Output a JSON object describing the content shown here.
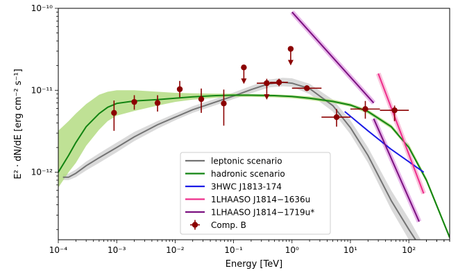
{
  "chart_data": {
    "type": "scatter",
    "title": "",
    "xlabel": "Energy [TeV]",
    "ylabel": "E² · dN/dE [erg cm⁻² s⁻¹]",
    "xscale": "log",
    "yscale": "log",
    "xlim": [
      0.0001,
      500
    ],
    "ylim": [
      1.5e-13,
      1e-10
    ],
    "grid": false,
    "legend_position": "lower-center",
    "x_ticks": [
      {
        "value": 0.0001,
        "label": "10⁻⁴"
      },
      {
        "value": 0.001,
        "label": "10⁻³"
      },
      {
        "value": 0.01,
        "label": "10⁻²"
      },
      {
        "value": 0.1,
        "label": "10⁻¹"
      },
      {
        "value": 1,
        "label": "10⁰"
      },
      {
        "value": 10,
        "label": "10¹"
      },
      {
        "value": 100,
        "label": "10²"
      }
    ],
    "y_ticks": [
      {
        "value": 1e-12,
        "label": "10⁻¹²"
      },
      {
        "value": 1e-11,
        "label": "10⁻¹¹"
      },
      {
        "value": 1e-10,
        "label": "10⁻¹⁰"
      }
    ],
    "series": [
      {
        "name": "leptonic scenario",
        "type": "line",
        "color": "#737373",
        "band_color": "#d3d3d3",
        "x": [
          0.00012,
          0.00015,
          0.0002,
          0.0003,
          0.0005,
          0.001,
          0.002,
          0.005,
          0.01,
          0.02,
          0.05,
          0.1,
          0.2,
          0.4,
          0.7,
          1.0,
          2,
          5,
          10,
          20,
          50,
          100,
          160
        ],
        "y": [
          8.7e-13,
          8.7e-13,
          9.7e-13,
          1.2e-12,
          1.5e-12,
          2e-12,
          2.7e-12,
          3.8e-12,
          4.7e-12,
          5.8e-12,
          7.2e-12,
          8.5e-12,
          1.02e-11,
          1.2e-11,
          1.25e-11,
          1.22e-11,
          1.05e-11,
          6.5e-12,
          3.5e-12,
          1.6e-12,
          4.5e-13,
          2e-13,
          1.2e-13
        ],
        "y_low": [
          8e-13,
          8e-13,
          8.7e-13,
          1.05e-12,
          1.3e-12,
          1.75e-12,
          2.4e-12,
          3.4e-12,
          4.3e-12,
          5.3e-12,
          6.6e-12,
          7.8e-12,
          9.2e-12,
          1.08e-11,
          1.12e-11,
          1.1e-11,
          9e-12,
          5.5e-12,
          2.9e-12,
          1.3e-12,
          3.5e-13,
          1.5e-13,
          1e-13
        ],
        "y_high": [
          9.5e-13,
          9.6e-13,
          1.08e-12,
          1.35e-12,
          1.7e-12,
          2.3e-12,
          3.1e-12,
          4.2e-12,
          5.2e-12,
          6.4e-12,
          7.9e-12,
          9.4e-12,
          1.13e-11,
          1.35e-11,
          1.42e-11,
          1.4e-11,
          1.2e-11,
          7.7e-12,
          4.3e-12,
          2e-12,
          6e-13,
          2.7e-13,
          1.5e-13
        ]
      },
      {
        "name": "hadronic scenario",
        "type": "line",
        "color": "#128412",
        "band_color": "#b4dc82",
        "x": [
          0.0001,
          0.00015,
          0.0002,
          0.0003,
          0.0005,
          0.0007,
          0.001,
          0.002,
          0.005,
          0.01,
          0.02,
          0.05,
          0.1,
          0.2,
          0.5,
          1,
          2,
          5,
          10,
          20,
          50,
          100,
          200,
          500
        ],
        "y": [
          1e-12,
          1.6e-12,
          2.3e-12,
          3.6e-12,
          5.2e-12,
          6.2e-12,
          6.9e-12,
          7.4e-12,
          7.7e-12,
          8e-12,
          8.3e-12,
          8.6e-12,
          8.7e-12,
          8.7e-12,
          8.6e-12,
          8.4e-12,
          8e-12,
          7.3e-12,
          6.6e-12,
          5.5e-12,
          3.6e-12,
          2e-12,
          8e-13,
          1.6e-13
        ],
        "y_low": [
          6.5e-13,
          1e-12,
          1.3e-12,
          2.1e-12,
          3.3e-12,
          4.2e-12,
          4.9e-12,
          5.6e-12,
          6.5e-12,
          7.2e-12,
          7.7e-12,
          8.1e-12,
          8.3e-12,
          8.3e-12,
          8.2e-12,
          8e-12,
          7.6e-12,
          7e-12,
          6.3e-12,
          5.2e-12,
          3.4e-12,
          1.9e-12,
          7.5e-13,
          1.5e-13
        ],
        "y_high": [
          3.2e-12,
          4.2e-12,
          5.2e-12,
          6.8e-12,
          8.8e-12,
          9.6e-12,
          1e-11,
          1e-11,
          9.6e-12,
          9.3e-12,
          9.2e-12,
          9.1e-12,
          9.1e-12,
          9e-12,
          8.9e-12,
          8.7e-12,
          8.4e-12,
          7.7e-12,
          6.9e-12,
          5.8e-12,
          3.8e-12,
          2.2e-12,
          8.6e-13,
          1.7e-13
        ]
      },
      {
        "name": "3HWC J1813-174",
        "type": "line",
        "color": "#1a1ae6",
        "x": [
          8,
          20,
          50,
          180
        ],
        "y": [
          5.5e-12,
          3.2e-12,
          1.9e-12,
          1e-12
        ]
      },
      {
        "name": "1LHAASO J1814−1636u",
        "type": "line",
        "color": "#ee2d8b",
        "band_color": "#f9c4dc",
        "x": [
          30,
          180
        ],
        "y": [
          1.6e-11,
          5.5e-13
        ]
      },
      {
        "name": "1LHAASO J1814−1719u*",
        "type": "line",
        "color": "#7b1180",
        "band_color": "#e8b8ea",
        "x": [
          1,
          25
        ],
        "y": [
          9e-11,
          7e-12
        ]
      },
      {
        "name": "",
        "type": "line",
        "color": "#7b1180",
        "band_color": "#e8b8ea",
        "x": [
          25,
          150
        ],
        "y": [
          4.5e-12,
          2.5e-13
        ]
      },
      {
        "name": "Comp. B",
        "type": "errorbar",
        "color": "#8b0000",
        "points": [
          {
            "x": 0.0009,
            "y": 5.3e-12,
            "ylo": 3.2e-12,
            "yhi": 7.5e-12
          },
          {
            "x": 0.002,
            "y": 7.2e-12,
            "ylo": 5.8e-12,
            "yhi": 8.7e-12
          },
          {
            "x": 0.005,
            "y": 7e-12,
            "ylo": 5.5e-12,
            "yhi": 8.7e-12
          },
          {
            "x": 0.012,
            "y": 1.03e-11,
            "ylo": 8.2e-12,
            "yhi": 1.3e-11
          },
          {
            "x": 0.028,
            "y": 7.8e-12,
            "ylo": 5.3e-12,
            "yhi": 1.05e-11
          },
          {
            "x": 0.068,
            "y": 6.9e-12,
            "ylo": 3.7e-12,
            "yhi": 1.02e-11
          },
          {
            "x": 0.37,
            "y": 1.22e-11,
            "ylo": 1.05e-11,
            "yhi": 1.38e-11,
            "xlo": 0.25,
            "xhi": 0.6
          },
          {
            "x": 0.6,
            "y": 1.25e-11,
            "ylo": 1.12e-11,
            "yhi": 1.38e-11,
            "xlo": 0.42,
            "xhi": 0.85
          },
          {
            "x": 1.8,
            "y": 1.06e-11,
            "ylo": 9.8e-12,
            "yhi": 1.15e-11,
            "xlo": 1.0,
            "xhi": 3.2
          },
          {
            "x": 5.8,
            "y": 4.7e-12,
            "ylo": 3.6e-12,
            "yhi": 5.9e-12,
            "xlo": 3.2,
            "xhi": 10
          },
          {
            "x": 18,
            "y": 5.9e-12,
            "ylo": 4.5e-12,
            "yhi": 7.4e-12,
            "xlo": 10,
            "xhi": 32
          },
          {
            "x": 57,
            "y": 5.7e-12,
            "ylo": 4.2e-12,
            "yhi": 6.5e-12,
            "xlo": 32,
            "xhi": 100
          }
        ],
        "upper_limits": [
          {
            "x": 0.15,
            "y": 1.9e-11
          },
          {
            "x": 0.37,
            "y": 1.22e-11
          },
          {
            "x": 0.95,
            "y": 3.2e-11
          }
        ]
      }
    ]
  }
}
